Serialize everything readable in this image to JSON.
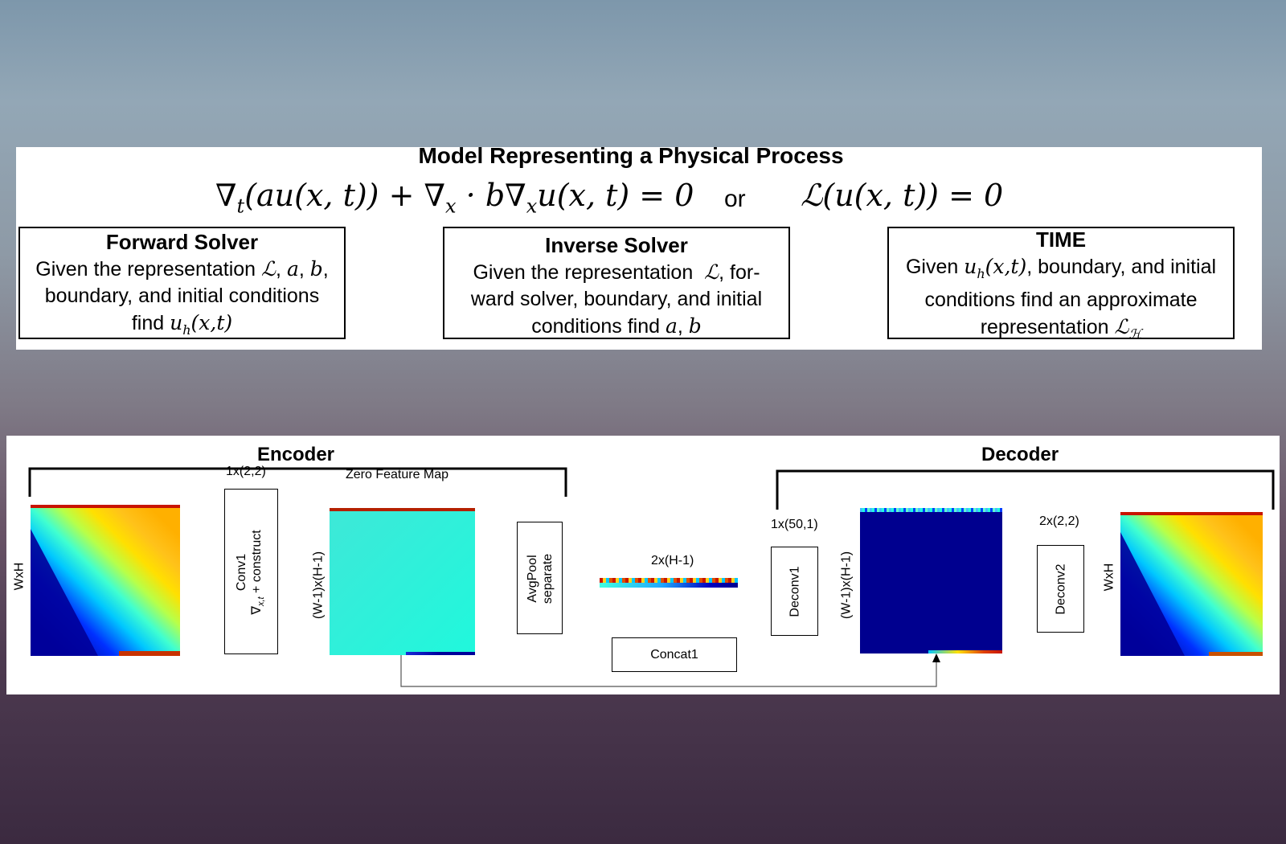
{
  "top": {
    "title": "Model Representing a Physical Process",
    "equation_left": "∇ₜ(au(x, t)) + ∇ₓ · b∇ₓu(x, t) = 0",
    "or_label": "or",
    "equation_right": "ℒ(u(x, t)) = 0",
    "boxes": [
      {
        "title": "Forward Solver",
        "lines": [
          "Given the representation ℒ, a, b,",
          "boundary, and initial conditions",
          "find uₕ(x,t)"
        ]
      },
      {
        "title": "Inverse Solver",
        "lines": [
          "Given the representation  ℒ, for-",
          "ward solver, boundary, and initial",
          "conditions find a, b"
        ]
      },
      {
        "title": "TIME",
        "lines": [
          "Given uₕ(x,t), boundary, and initial",
          "conditions find an approximate",
          "representation ℒℋ"
        ]
      }
    ]
  },
  "network": {
    "encoder_label": "Encoder",
    "decoder_label": "Decoder",
    "input_label": "WxH",
    "conv1_kernel": "1x(2,2)",
    "conv1_label_line1": "Conv1",
    "conv1_label_line2": "∇x,t + construct",
    "zero_feature_map_label": "Zero Feature Map",
    "zero_map_dim": "(W-1)x(H-1)",
    "avgpool_line1": "AvgPool",
    "avgpool_line2": "separate",
    "strip_label": "2x(H-1)",
    "concat_label": "Concat1",
    "deconv1_kernel": "1x(50,1)",
    "deconv1_label": "Deconv1",
    "decoder_map_dim": "(W-1)x(H-1)",
    "deconv2_kernel": "2x(2,2)",
    "deconv2_label": "Deconv2",
    "output_label": "WxH"
  },
  "colors": {
    "jet_dark_blue": "#00008f",
    "jet_cyan": "#2ef2e0",
    "jet_yellow": "#ffd21a",
    "jet_red": "#c81400"
  }
}
